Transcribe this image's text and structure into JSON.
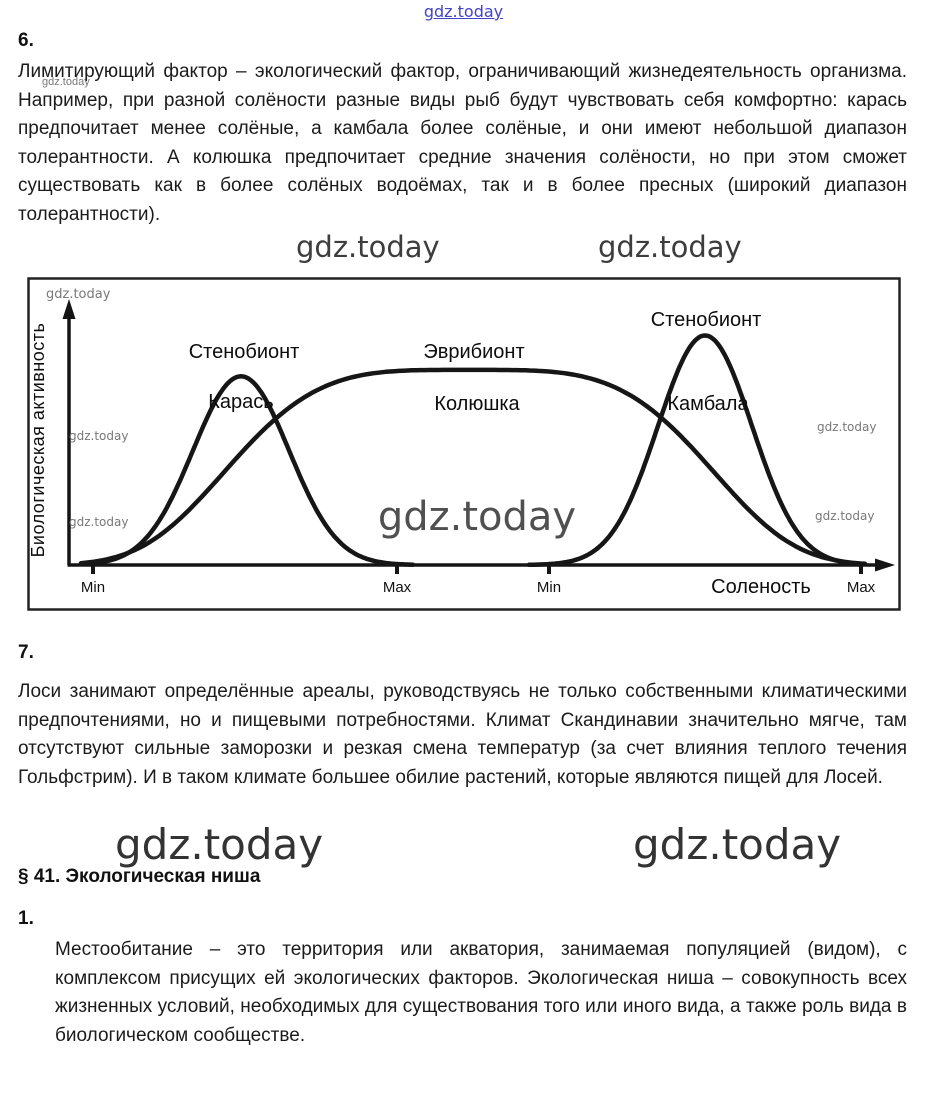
{
  "page": {
    "top_watermark": "gdz.today",
    "watermark": "gdz.today"
  },
  "sections": {
    "s6_number": "6.",
    "s6_text": "Лимитирующий фактор – экологический фактор, ограничивающий жизнедеятельность организма. Например, при разной солёности разные виды рыб будут чувствовать себя комфортно: карась предпочитает менее солёные, а камбала более солёные, и они имеют небольшой диапазон толерантности. А колюшка предпочитает средние значения солёности, но при этом сможет существовать как в более солёных водоёмах, так и в более пресных (широкий диапазон толерантности).",
    "s7_number": "7.",
    "s7_text": "Лоси занимают определённые ареалы, руководствуясь не только собственными климатическими предпочтениями, но и пищевыми потребностями. Климат Скандинавии значительно мягче, там отсутствуют сильные заморозки и резкая смена температур (за счет влияния теплого течения Гольфстрим). И в таком климате большее обилие растений, которые являются пищей для Лосей.",
    "paragraph_heading": "§ 41. Экологическая ниша",
    "s1_number": "1.",
    "s1_text": "Местообитание – это территория или акватория, занимаемая популяцией (видом), с комплексом присущих ей экологических факторов. Экологическая ниша – совокупность всех жизненных условий, необходимых для существования того или иного вида, а также роль вида в биологическом сообществе."
  },
  "chart_data": {
    "type": "line",
    "ylabel": "Биологическая активность",
    "xlabel": "Соленость",
    "x_axis": {
      "ticks": [
        {
          "label": "Min",
          "x": 0.03
        },
        {
          "label": "Max",
          "x": 0.41
        },
        {
          "label": "Min",
          "x": 0.6
        },
        {
          "label": "Max",
          "x": 0.99
        }
      ]
    },
    "series": [
      {
        "name": "Карась",
        "category": "Стенобионт",
        "tolerance": "узкий диапазон",
        "center": 0.215,
        "width": 0.085,
        "peak": 0.74,
        "power": 2,
        "range": [
          0.02,
          0.43
        ]
      },
      {
        "name": "Колюшка",
        "category": "Эврибионт",
        "tolerance": "широкий диапазон",
        "center": 0.5,
        "width": 0.33,
        "peak": 0.765,
        "power": 4,
        "range": [
          0.015,
          0.995
        ]
      },
      {
        "name": "Камбала",
        "category": "Стенобионт",
        "tolerance": "узкий диапазон",
        "center": 0.795,
        "width": 0.083,
        "peak": 0.9,
        "power": 2,
        "range": [
          0.575,
          0.995
        ]
      }
    ]
  }
}
